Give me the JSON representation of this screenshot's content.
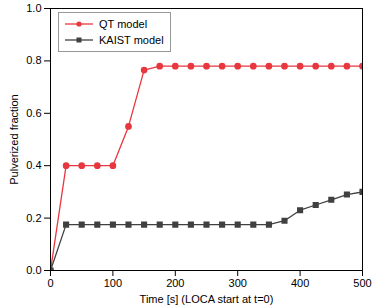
{
  "chart_data": {
    "type": "line",
    "x_label": "Time [s] (LOCA start at t=0)",
    "y_label": "Pulverized fraction",
    "x": [
      0,
      25,
      50,
      75,
      100,
      125,
      150,
      175,
      200,
      225,
      250,
      275,
      300,
      325,
      350,
      375,
      400,
      425,
      450,
      475,
      500
    ],
    "series": [
      {
        "name": "QT model",
        "color": "#e8373f",
        "marker": "circle",
        "values": [
          0,
          0.4,
          0.4,
          0.4,
          0.4,
          0.55,
          0.765,
          0.78,
          0.78,
          0.78,
          0.78,
          0.78,
          0.78,
          0.78,
          0.78,
          0.78,
          0.78,
          0.78,
          0.78,
          0.78,
          0.78
        ]
      },
      {
        "name": "KAIST model",
        "color": "#404040",
        "marker": "square",
        "values": [
          0,
          0.175,
          0.175,
          0.175,
          0.175,
          0.175,
          0.175,
          0.175,
          0.175,
          0.175,
          0.175,
          0.175,
          0.175,
          0.175,
          0.175,
          0.19,
          0.23,
          0.25,
          0.27,
          0.29,
          0.3
        ]
      }
    ],
    "xlim": [
      0,
      500
    ],
    "xticks": [
      0,
      100,
      200,
      300,
      400,
      500
    ],
    "ylim": [
      0,
      1.0
    ],
    "yticks": [
      {
        "value": 0,
        "label": "0.0"
      },
      {
        "value": 0.2,
        "label": "0.2"
      },
      {
        "value": 0.4,
        "label": "0.4"
      },
      {
        "value": 0.6,
        "label": "0.6"
      },
      {
        "value": 0.8,
        "label": "0.8"
      },
      {
        "value": 1.0,
        "label": "1.0"
      }
    ],
    "grid": false,
    "legend": "upper left"
  }
}
